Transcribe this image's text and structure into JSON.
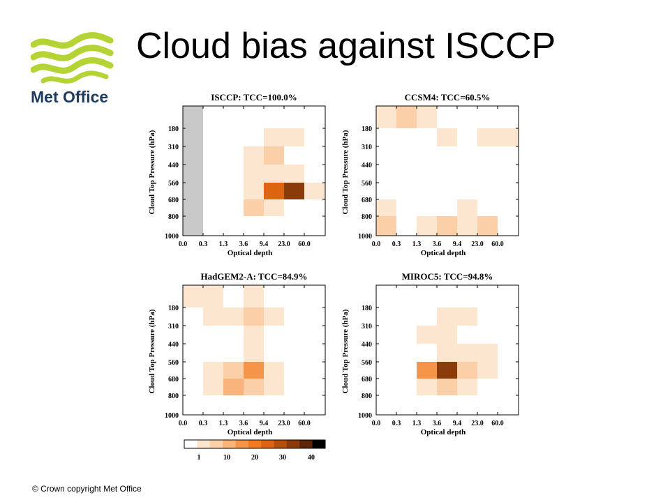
{
  "slide": {
    "title": "Cloud bias against ISCCP",
    "footer": "© Crown  copyright   Met Office",
    "logo": {
      "text": "Met Office",
      "colors": {
        "waves": "#b5d334",
        "text": "#1f3a5f"
      }
    }
  },
  "chart_data": [
    {
      "type": "heatmap",
      "title": "ISCCP: TCC=100.0%",
      "xlabel": "Optical depth",
      "ylabel": "Cloud Top Pressure (hPa)",
      "x_ticks": [
        "0.0",
        "0.3",
        "1.3",
        "3.6",
        "9.4",
        "23.0",
        "60.0"
      ],
      "y_ticks": [
        "180",
        "310",
        "440",
        "560",
        "680",
        "800",
        "1000"
      ],
      "no_data_column": 0,
      "cells": [
        {
          "col": 4,
          "row": 1,
          "value": 2
        },
        {
          "col": 5,
          "row": 1,
          "value": 2
        },
        {
          "col": 3,
          "row": 2,
          "value": 2
        },
        {
          "col": 4,
          "row": 2,
          "value": 5
        },
        {
          "col": 3,
          "row": 3,
          "value": 2
        },
        {
          "col": 4,
          "row": 3,
          "value": 2
        },
        {
          "col": 5,
          "row": 3,
          "value": 2
        },
        {
          "col": 3,
          "row": 4,
          "value": 2
        },
        {
          "col": 4,
          "row": 4,
          "value": 28
        },
        {
          "col": 5,
          "row": 4,
          "value": 38
        },
        {
          "col": 6,
          "row": 4,
          "value": 2
        },
        {
          "col": 3,
          "row": 5,
          "value": 7
        },
        {
          "col": 4,
          "row": 5,
          "value": 2
        }
      ]
    },
    {
      "type": "heatmap",
      "title": "CCSM4: TCC=60.5%",
      "xlabel": "Optical depth",
      "ylabel": "Cloud Top Pressure (hPa)",
      "x_ticks": [
        "0.0",
        "0.3",
        "1.3",
        "3.6",
        "9.4",
        "23.0",
        "60.0"
      ],
      "y_ticks": [
        "180",
        "310",
        "440",
        "560",
        "680",
        "800",
        "1000"
      ],
      "cells": [
        {
          "col": 0,
          "row": 0,
          "value": 2
        },
        {
          "col": 1,
          "row": 0,
          "value": 7
        },
        {
          "col": 2,
          "row": 0,
          "value": 2
        },
        {
          "col": 3,
          "row": 1,
          "value": 2
        },
        {
          "col": 5,
          "row": 1,
          "value": 2
        },
        {
          "col": 6,
          "row": 1,
          "value": 2
        },
        {
          "col": 0,
          "row": 5,
          "value": 2
        },
        {
          "col": 4,
          "row": 5,
          "value": 2
        },
        {
          "col": 0,
          "row": 6,
          "value": 7
        },
        {
          "col": 2,
          "row": 6,
          "value": 2
        },
        {
          "col": 3,
          "row": 6,
          "value": 7
        },
        {
          "col": 4,
          "row": 6,
          "value": 2
        },
        {
          "col": 5,
          "row": 6,
          "value": 7
        }
      ]
    },
    {
      "type": "heatmap",
      "title": "HadGEM2-A: TCC=84.9%",
      "xlabel": "Optical depth",
      "ylabel": "Cloud Top Pressure (hPa)",
      "x_ticks": [
        "0.0",
        "0.3",
        "1.3",
        "3.6",
        "9.4",
        "23.0",
        "60.0"
      ],
      "y_ticks": [
        "180",
        "310",
        "440",
        "560",
        "680",
        "800",
        "1000"
      ],
      "cells": [
        {
          "col": 0,
          "row": 0,
          "value": 2
        },
        {
          "col": 1,
          "row": 0,
          "value": 2
        },
        {
          "col": 3,
          "row": 0,
          "value": 2
        },
        {
          "col": 1,
          "row": 1,
          "value": 2
        },
        {
          "col": 2,
          "row": 1,
          "value": 2
        },
        {
          "col": 3,
          "row": 1,
          "value": 7
        },
        {
          "col": 4,
          "row": 1,
          "value": 2
        },
        {
          "col": 3,
          "row": 2,
          "value": 2
        },
        {
          "col": 3,
          "row": 3,
          "value": 2
        },
        {
          "col": 1,
          "row": 4,
          "value": 2
        },
        {
          "col": 2,
          "row": 4,
          "value": 7
        },
        {
          "col": 3,
          "row": 4,
          "value": 16
        },
        {
          "col": 4,
          "row": 4,
          "value": 2
        },
        {
          "col": 1,
          "row": 5,
          "value": 2
        },
        {
          "col": 2,
          "row": 5,
          "value": 11
        },
        {
          "col": 3,
          "row": 5,
          "value": 7
        },
        {
          "col": 4,
          "row": 5,
          "value": 2
        }
      ]
    },
    {
      "type": "heatmap",
      "title": "MIROC5: TCC=94.8%",
      "xlabel": "Optical depth",
      "ylabel": "Cloud Top Pressure (hPa)",
      "x_ticks": [
        "0.0",
        "0.3",
        "1.3",
        "3.6",
        "9.4",
        "23.0",
        "60.0"
      ],
      "y_ticks": [
        "180",
        "310",
        "440",
        "560",
        "680",
        "800",
        "1000"
      ],
      "cells": [
        {
          "col": 3,
          "row": 1,
          "value": 2
        },
        {
          "col": 4,
          "row": 1,
          "value": 2
        },
        {
          "col": 2,
          "row": 2,
          "value": 2
        },
        {
          "col": 3,
          "row": 2,
          "value": 2
        },
        {
          "col": 3,
          "row": 3,
          "value": 2
        },
        {
          "col": 4,
          "row": 3,
          "value": 2
        },
        {
          "col": 5,
          "row": 3,
          "value": 2
        },
        {
          "col": 2,
          "row": 4,
          "value": 16
        },
        {
          "col": 3,
          "row": 4,
          "value": 38
        },
        {
          "col": 4,
          "row": 4,
          "value": 7
        },
        {
          "col": 5,
          "row": 4,
          "value": 2
        },
        {
          "col": 2,
          "row": 5,
          "value": 2
        },
        {
          "col": 3,
          "row": 5,
          "value": 7
        },
        {
          "col": 4,
          "row": 5,
          "value": 2
        }
      ]
    }
  ],
  "colorbar": {
    "labels": [
      "1",
      "10",
      "20",
      "30",
      "40"
    ],
    "colors": [
      "#ffffff",
      "#fde6d0",
      "#fbcfa8",
      "#f9b37c",
      "#f6944a",
      "#f47a1f",
      "#dd6410",
      "#b44f0c",
      "#8a3b0c",
      "#5a2508",
      "#000000"
    ],
    "bounds": [
      0,
      1,
      5,
      10,
      15,
      20,
      25,
      30,
      35,
      40,
      45
    ]
  }
}
